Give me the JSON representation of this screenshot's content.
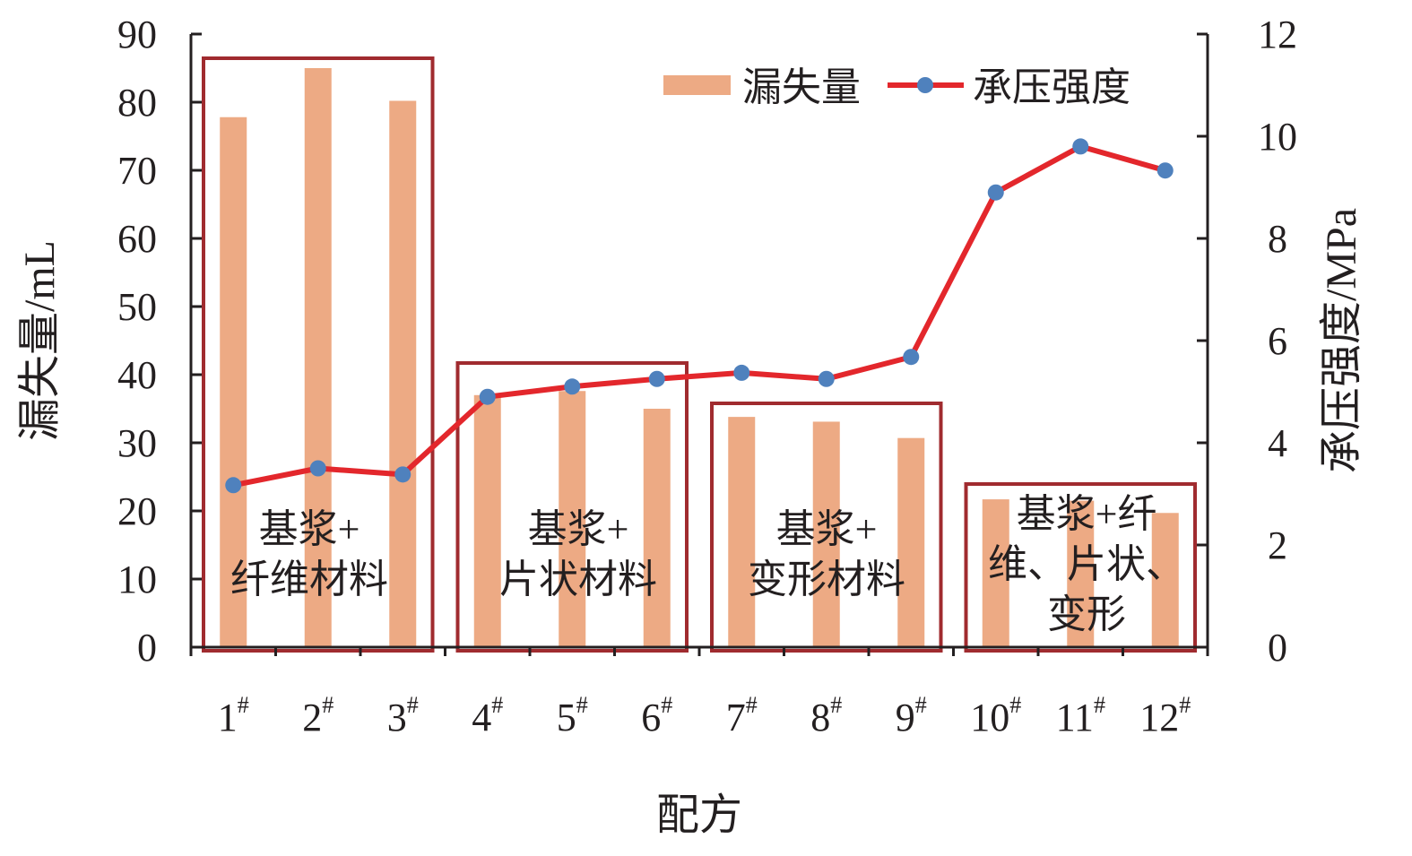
{
  "chart_data": {
    "type": "bar",
    "categories": [
      "1",
      "2",
      "3",
      "4",
      "5",
      "6",
      "7",
      "8",
      "9",
      "10",
      "11",
      "12"
    ],
    "category_superscript": "#",
    "xlabel": "配方",
    "ylabel_left": "漏失量/mL",
    "ylabel_right": "承压强度/MPa",
    "ylim_left": [
      0,
      90
    ],
    "ylim_right": [
      0,
      12
    ],
    "yticks_left": [
      "0",
      "10",
      "20",
      "30",
      "40",
      "50",
      "60",
      "70",
      "80",
      "90"
    ],
    "yticks_right": [
      "0",
      "2",
      "4",
      "6",
      "8",
      "10",
      "12"
    ],
    "series": [
      {
        "name": "漏失量",
        "type": "bar",
        "axis": "left",
        "values": [
          77.8,
          85.0,
          80.2,
          37.0,
          37.6,
          35.0,
          33.8,
          33.1,
          30.7,
          21.7,
          21.5,
          19.7
        ]
      },
      {
        "name": "承压强度",
        "type": "line",
        "axis": "right",
        "values": [
          3.17,
          3.5,
          3.38,
          4.9,
          5.1,
          5.25,
          5.37,
          5.25,
          5.68,
          8.9,
          9.8,
          9.33
        ]
      }
    ],
    "colors": {
      "bar": "#edaa84",
      "line": "#e3272c",
      "marker": "#4f81bd",
      "box": "#a02b2f",
      "axis": "#231f20"
    },
    "legend_position": "top-right",
    "grid": false,
    "groups": [
      {
        "label_lines": [
          "基浆+",
          "纤维材料"
        ],
        "from": 0,
        "to": 2
      },
      {
        "label_lines": [
          "基浆+",
          "片状材料"
        ],
        "from": 3,
        "to": 5
      },
      {
        "label_lines": [
          "基浆+",
          "变形材料"
        ],
        "from": 6,
        "to": 8
      },
      {
        "label_lines": [
          "基浆+纤",
          "维、片状、",
          "变形"
        ],
        "from": 9,
        "to": 11
      }
    ]
  }
}
